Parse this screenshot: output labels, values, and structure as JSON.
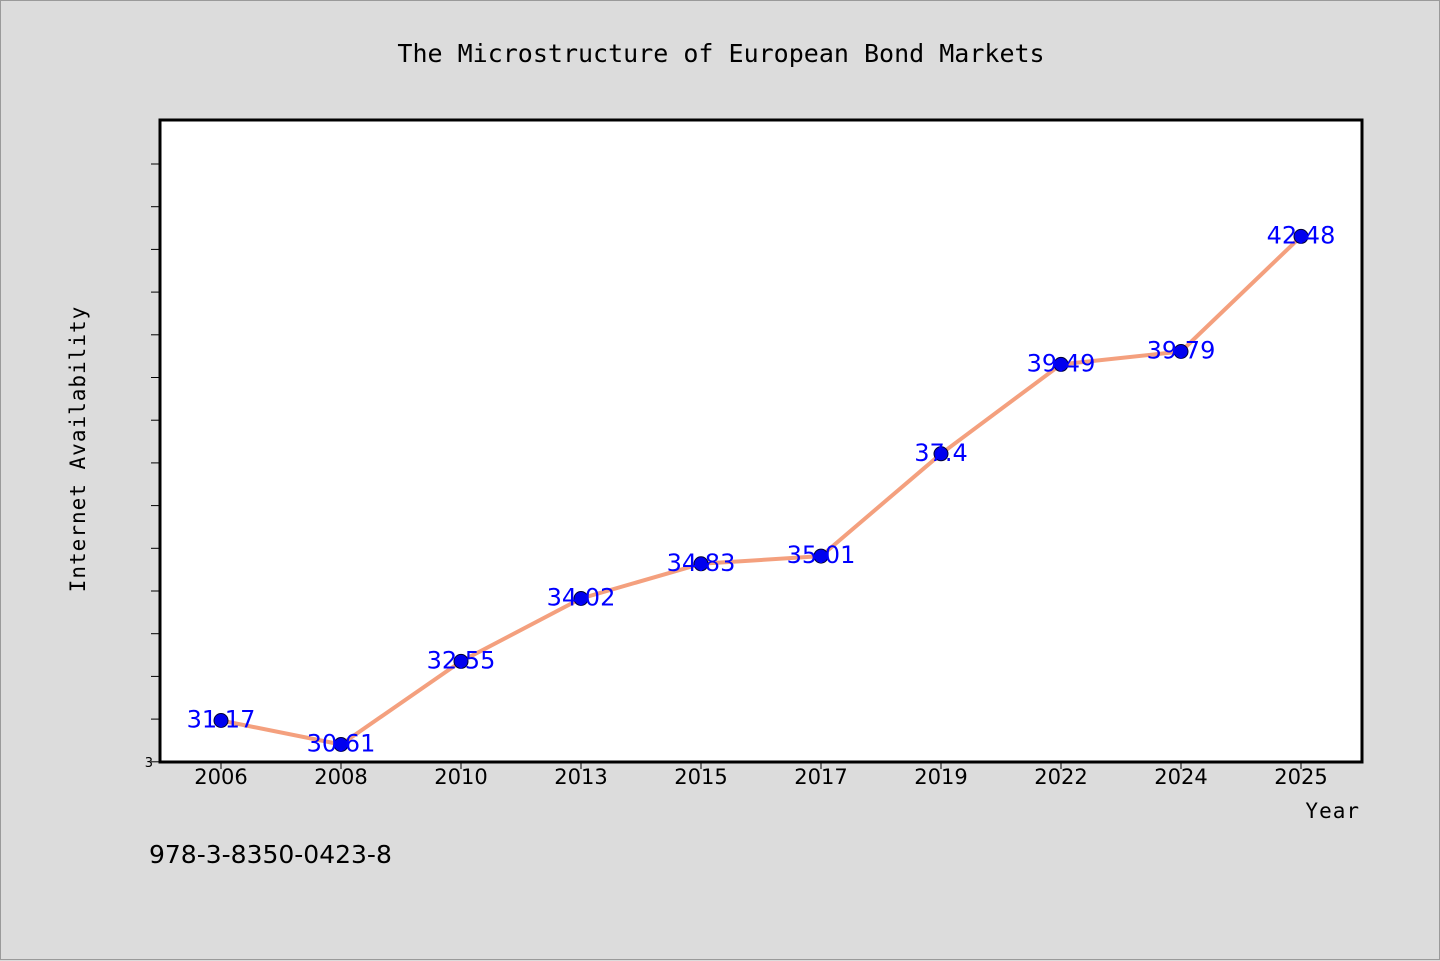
{
  "chart_data": {
    "type": "line",
    "title": "The Microstructure of European Bond Markets",
    "xlabel": "Year",
    "ylabel": "Internet Availability",
    "categories": [
      "2006",
      "2008",
      "2010",
      "2013",
      "2015",
      "2017",
      "2019",
      "2022",
      "2024",
      "2025"
    ],
    "series": [
      {
        "values": [
          31.17,
          30.61,
          32.55,
          34.02,
          34.83,
          35.01,
          37.4,
          39.49,
          39.79,
          42.48
        ],
        "labels": [
          "31.17",
          "30.61",
          "32.55",
          "34.02",
          "34.83",
          "35.01",
          "37.4",
          "39.49",
          "39.79",
          "42.48"
        ],
        "line_color": "#f4a07e",
        "marker_color": "#0000ee"
      }
    ],
    "ylim": [
      30.2,
      45.2
    ],
    "y_tick_label": "3",
    "grid": false,
    "footer_text": "978-3-8350-0423-8",
    "colors": {
      "background": "#dcdcdc",
      "plot_background": "#ffffff",
      "data_label": "#0000ff"
    }
  }
}
